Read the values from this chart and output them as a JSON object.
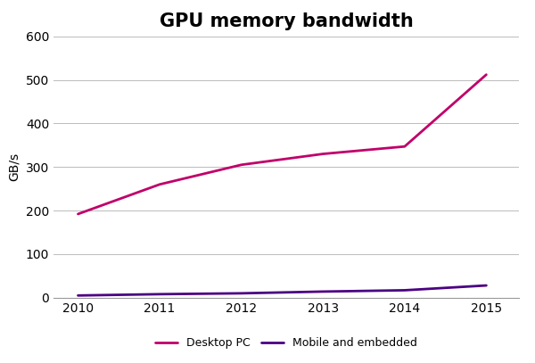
{
  "title": "GPU memory bandwidth",
  "ylabel": "GB/s",
  "years": [
    2010,
    2011,
    2012,
    2013,
    2014,
    2015
  ],
  "desktop_values": [
    192,
    260,
    305,
    330,
    347,
    512
  ],
  "mobile_values": [
    5,
    8,
    10,
    14,
    17,
    28
  ],
  "desktop_color": "#c0006a",
  "mobile_color": "#4b0082",
  "desktop_label": "Desktop PC",
  "mobile_label": "Mobile and embedded",
  "ylim": [
    0,
    600
  ],
  "yticks": [
    0,
    100,
    200,
    300,
    400,
    500,
    600
  ],
  "xlim": [
    2009.7,
    2015.4
  ],
  "xticks": [
    2010,
    2011,
    2012,
    2013,
    2014,
    2015
  ],
  "background_color": "#ffffff",
  "grid_color": "#bbbbbb",
  "line_width": 2.0,
  "title_fontsize": 15,
  "tick_fontsize": 10,
  "ylabel_fontsize": 10,
  "legend_fontsize": 9
}
